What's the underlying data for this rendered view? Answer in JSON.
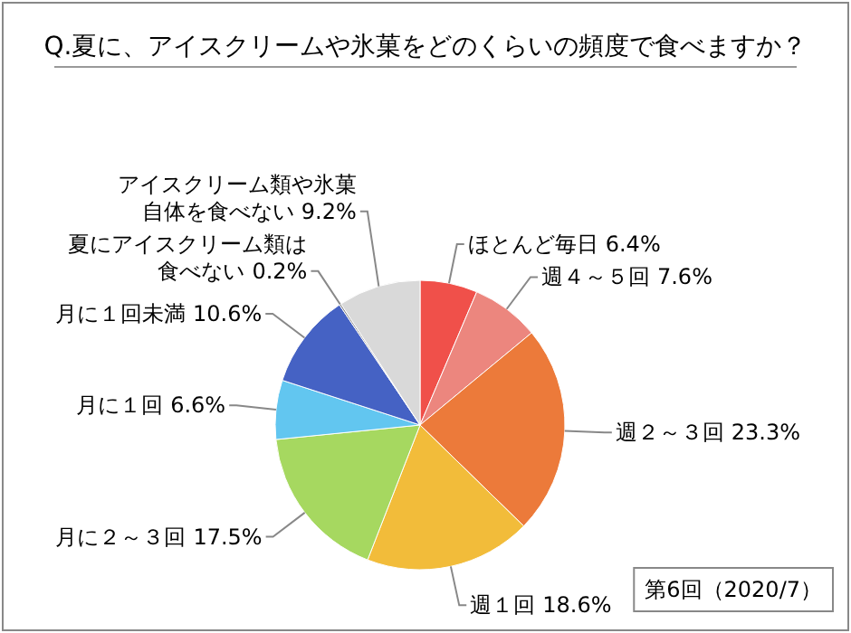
{
  "chart_data": {
    "type": "pie",
    "title": "Q.夏に、アイスクリームや氷菓をどのくらいの頻度で食べますか？",
    "categories": [
      "ほとんど毎日",
      "週４～５回",
      "週２～３回",
      "週１回",
      "月に２～３回",
      "月に１回",
      "月に１回未満",
      "夏にアイスクリーム類は食べない",
      "アイスクリーム類や氷菓自体を食べない"
    ],
    "values": [
      6.4,
      7.6,
      23.3,
      18.6,
      17.5,
      6.6,
      10.6,
      0.2,
      9.2
    ],
    "colors": [
      "#f0504a",
      "#ec867e",
      "#ec7a3a",
      "#f2bc3a",
      "#a6d860",
      "#62c6f0",
      "#4562c4",
      "#8a8a8a",
      "#d9d9d9"
    ],
    "value_labels": [
      "6.4%",
      "7.6%",
      "23.3%",
      "18.6%",
      "17.5%",
      "6.6%",
      "10.6%",
      "0.2%",
      "9.2%"
    ],
    "annotations": [
      "第6回（2020/7）"
    ]
  }
}
